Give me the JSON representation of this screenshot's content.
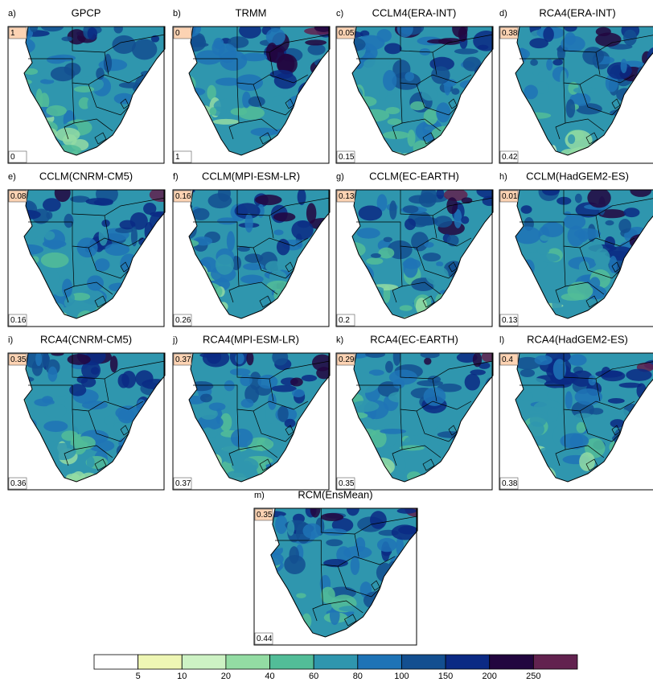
{
  "panels": [
    {
      "letter": "a)",
      "title": "GPCP",
      "top_value": "1",
      "bottom_value": "0"
    },
    {
      "letter": "b)",
      "title": "TRMM",
      "top_value": "0",
      "bottom_value": "1"
    },
    {
      "letter": "c)",
      "title": "CCLM4(ERA-INT)",
      "top_value": "0.05",
      "bottom_value": "0.15"
    },
    {
      "letter": "d)",
      "title": "RCA4(ERA-INT)",
      "top_value": "0.38",
      "bottom_value": "0.42"
    },
    {
      "letter": "e)",
      "title": "CCLM(CNRM-CM5)",
      "top_value": "0.08",
      "bottom_value": "0.16"
    },
    {
      "letter": "f)",
      "title": "CCLM(MPI-ESM-LR)",
      "top_value": "0.16",
      "bottom_value": "0.26"
    },
    {
      "letter": "g)",
      "title": "CCLM(EC-EARTH)",
      "top_value": "0.13",
      "bottom_value": "0.2"
    },
    {
      "letter": "h)",
      "title": "CCLM(HadGEM2-ES)",
      "top_value": "0.01",
      "bottom_value": "0.13"
    },
    {
      "letter": "i)",
      "title": "RCA4(CNRM-CM5)",
      "top_value": "0.35",
      "bottom_value": "0.36"
    },
    {
      "letter": "j)",
      "title": "RCA4(MPI-ESM-LR)",
      "top_value": "0.37",
      "bottom_value": "0.37"
    },
    {
      "letter": "k)",
      "title": "RCA4(EC-EARTH)",
      "top_value": "0.29",
      "bottom_value": "0.35"
    },
    {
      "letter": "l)",
      "title": "RCA4(HadGEM2-ES)",
      "top_value": "0.4",
      "bottom_value": "0.38"
    },
    {
      "letter": "m)",
      "title": "RCM(EnsMean)",
      "top_value": "0.35",
      "bottom_value": "0.44"
    }
  ],
  "colorbar": {
    "labels": [
      "5",
      "10",
      "20",
      "40",
      "60",
      "80",
      "100",
      "150",
      "200",
      "250"
    ],
    "colors": [
      "#ffffff",
      "#eef6b4",
      "#cdf2c4",
      "#93dca3",
      "#52bd98",
      "#2f96ae",
      "#1e73b6",
      "#134f90",
      "#0b2a84",
      "#22063f",
      "#62224f"
    ]
  }
}
